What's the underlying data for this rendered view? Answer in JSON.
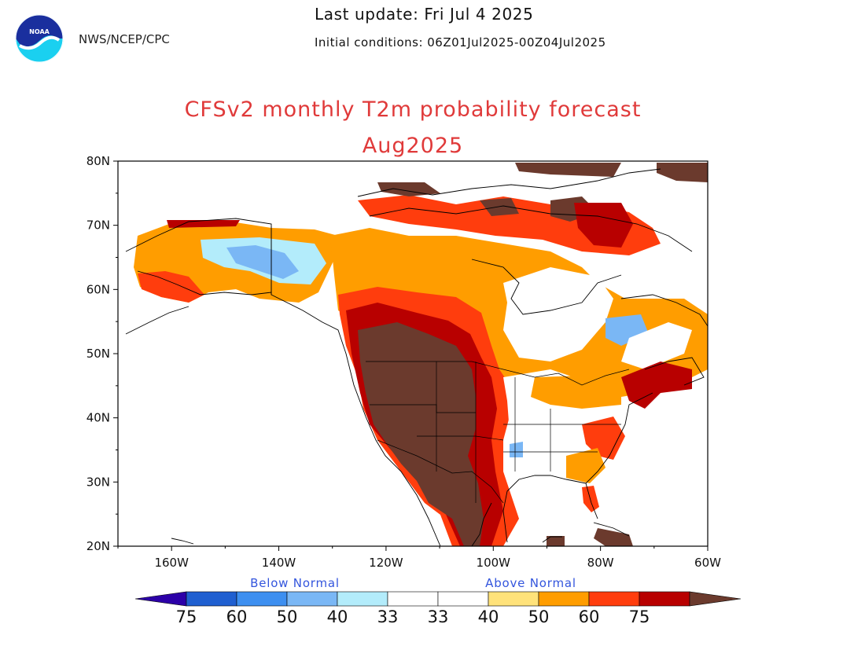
{
  "header": {
    "agency": "NWS/NCEP/CPC",
    "logo_text": "NOAA",
    "last_update": "Last update: Fri Jul 4 2025",
    "initial_conditions": "Initial conditions: 06Z01Jul2025-00Z04Jul2025"
  },
  "title": {
    "line1": "CFSv2 monthly T2m probability forecast",
    "line2": "Aug2025"
  },
  "map": {
    "lon_range": [
      -170,
      -60
    ],
    "lat_range": [
      20,
      80
    ],
    "y_ticks": [
      "80N",
      "70N",
      "60N",
      "50N",
      "40N",
      "30N",
      "20N"
    ],
    "x_ticks": [
      "160W",
      "140W",
      "120W",
      "100W",
      "80W",
      "60W"
    ]
  },
  "colorbar": {
    "below_label": "Below Normal",
    "above_label": "Above Normal",
    "labels": [
      "75",
      "60",
      "50",
      "40",
      "33",
      "33",
      "40",
      "50",
      "60",
      "75"
    ],
    "colors": {
      "below_75": "#2c00a8",
      "below_60": "#1f5fd0",
      "below_50": "#3d8ff0",
      "below_40": "#7ab7f5",
      "below_33": "#b3ecfb",
      "normal": "#ffffff",
      "above_33": "#ffe27a",
      "above_40": "#ff9d00",
      "above_50": "#ff3d0d",
      "above_60": "#b80000",
      "above_75": "#6b3a2d"
    }
  }
}
